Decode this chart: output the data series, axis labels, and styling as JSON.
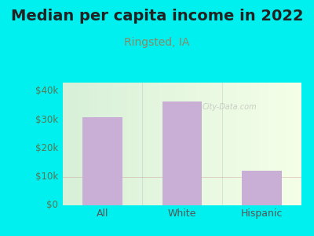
{
  "title": "Median per capita income in 2022",
  "subtitle": "Ringsted, IA",
  "categories": [
    "All",
    "White",
    "Hispanic"
  ],
  "values": [
    31000,
    36500,
    12000
  ],
  "bar_color": "#c9aed6",
  "title_fontsize": 14,
  "title_color": "#222222",
  "subtitle_fontsize": 10,
  "subtitle_color": "#888866",
  "tick_color": "#555555",
  "ytick_color": "#557755",
  "yticks": [
    0,
    10000,
    20000,
    30000,
    40000
  ],
  "ytick_labels": [
    "$0",
    "$10k",
    "$20k",
    "$30k",
    "$40k"
  ],
  "ylim": [
    0,
    43000
  ],
  "background_outer": "#00f0f0",
  "watermark": "City-Data.com",
  "bar_width": 0.5
}
